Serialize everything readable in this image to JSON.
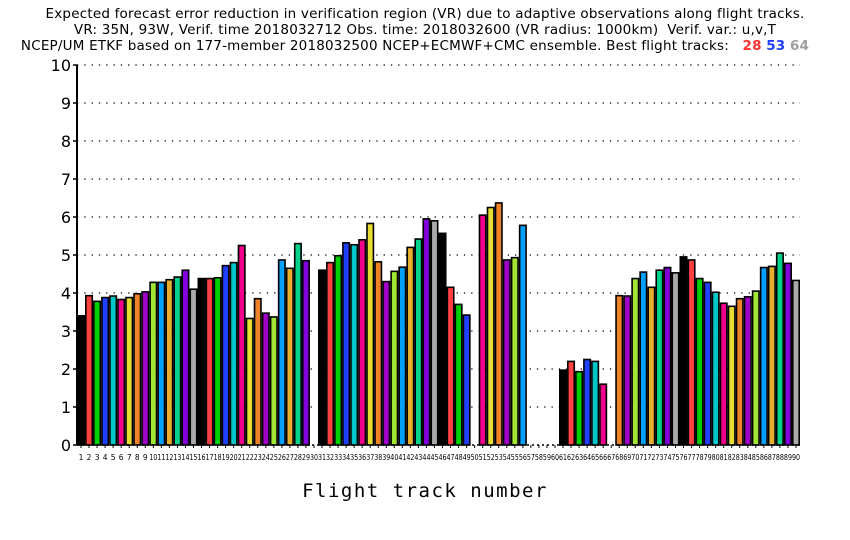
{
  "chart_data": {
    "type": "bar",
    "title_lines": [
      "Expected forecast error reduction in verification region (VR) due to adaptive observations along flight tracks.",
      "VR: 35N, 93W, Verif. time 2018032712 Obs. time: 2018032600 (VR radius: 1000km)  Verif. var.: u,v,T",
      "NCEP/UM ETKF based on 177-member 2018032500 NCEP+ECMWF+CMC ensemble. Best flight tracks:"
    ],
    "best_tracks": [
      {
        "label": "28",
        "color": "#ff3030"
      },
      {
        "label": "53",
        "color": "#2040ff"
      },
      {
        "label": "64",
        "color": "#a0a0a0"
      }
    ],
    "xlabel": "Flight track number",
    "ylabel": "",
    "ylim": [
      0,
      10
    ],
    "yticks": [
      "0",
      "1",
      "2",
      "3",
      "4",
      "5",
      "6",
      "7",
      "8",
      "9",
      "10"
    ],
    "grid": true,
    "palette": [
      "#000000",
      "#ff4040",
      "#00d000",
      "#2040ff",
      "#00c8c8",
      "#f0008c",
      "#e6dc32",
      "#f08228",
      "#a000c8",
      "#a0e632",
      "#00a0ff",
      "#e6af2d",
      "#00d28c",
      "#8200dc",
      "#aaaaaa"
    ],
    "categories": [
      "1",
      "2",
      "3",
      "4",
      "5",
      "6",
      "7",
      "8",
      "9",
      "10",
      "11",
      "12",
      "13",
      "14",
      "15",
      "16",
      "17",
      "18",
      "19",
      "20",
      "21",
      "22",
      "23",
      "24",
      "25",
      "26",
      "27",
      "28",
      "29",
      "30",
      "31",
      "32",
      "33",
      "34",
      "35",
      "36",
      "37",
      "38",
      "39",
      "40",
      "41",
      "42",
      "43",
      "44",
      "45",
      "46",
      "47",
      "48",
      "49",
      "50",
      "51",
      "52",
      "53",
      "54",
      "55",
      "56",
      "57",
      "58",
      "59",
      "60",
      "61",
      "62",
      "63",
      "64",
      "65",
      "66",
      "67",
      "68",
      "69",
      "70",
      "71",
      "72",
      "73",
      "74",
      "75",
      "76",
      "77",
      "78",
      "79",
      "80",
      "81",
      "82",
      "83",
      "84",
      "85",
      "86",
      "87",
      "88",
      "89",
      "90"
    ],
    "values": [
      3.4,
      3.93,
      3.78,
      3.88,
      3.92,
      3.83,
      3.88,
      3.98,
      4.03,
      4.28,
      4.28,
      4.35,
      4.42,
      4.6,
      4.1,
      4.38,
      4.38,
      4.4,
      4.72,
      4.8,
      5.25,
      3.33,
      3.85,
      3.47,
      3.37,
      4.87,
      4.65,
      5.3,
      4.85,
      0,
      4.6,
      4.8,
      4.98,
      5.32,
      5.27,
      5.4,
      5.83,
      4.82,
      4.3,
      4.57,
      4.68,
      5.2,
      5.42,
      5.95,
      5.9,
      5.57,
      4.15,
      3.7,
      3.42,
      0,
      6.05,
      6.25,
      6.37,
      4.87,
      4.93,
      5.78,
      0,
      0,
      0,
      0,
      1.97,
      2.2,
      1.93,
      2.25,
      2.2,
      1.6,
      0,
      3.93,
      3.92,
      4.38,
      4.55,
      4.15,
      4.6,
      4.67,
      4.53,
      4.95,
      4.87,
      4.38,
      4.28,
      4.02,
      3.73,
      3.65,
      3.85,
      3.9,
      4.05,
      4.67,
      4.7,
      5.05,
      4.78,
      4.33
    ]
  }
}
